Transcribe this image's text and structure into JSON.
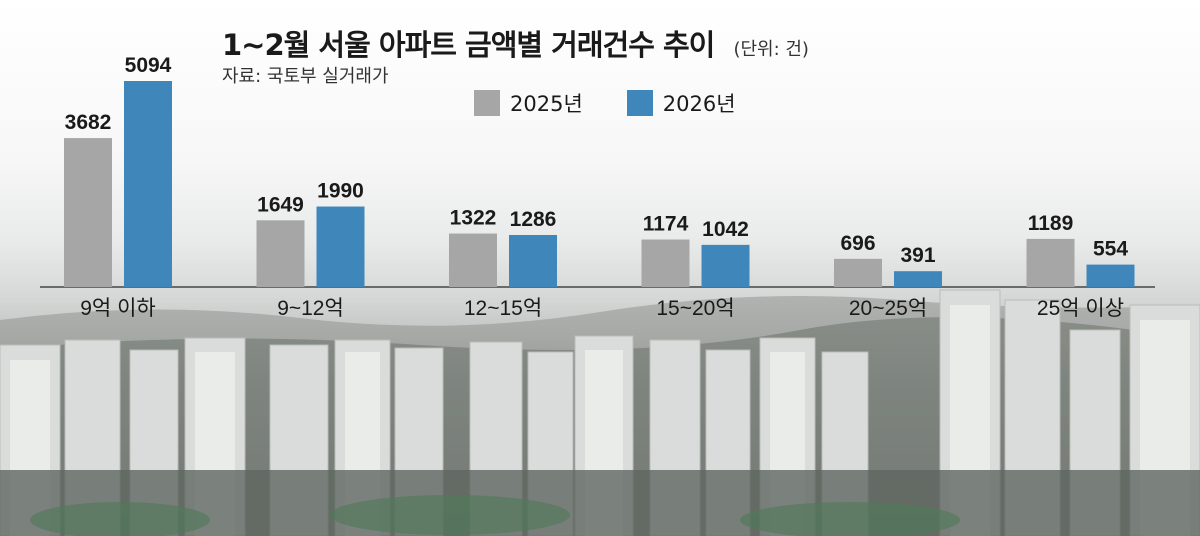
{
  "title": "1~2월 서울 아파트 금액별 거래건수 추이",
  "unit": "(단위: 건)",
  "source": "자료: 국토부 실거래가",
  "colors": {
    "series_2025": "#a6a6a6",
    "series_2026": "#3f87bb"
  },
  "chart_data": {
    "type": "bar",
    "categories": [
      "9억 이하",
      "9~12억",
      "12~15억",
      "15~20억",
      "20~25억",
      "25억 이상"
    ],
    "series": [
      {
        "name": "2025년",
        "values": [
          3682,
          1649,
          1322,
          1174,
          696,
          1189
        ]
      },
      {
        "name": "2026년",
        "values": [
          5094,
          1990,
          1286,
          1042,
          391,
          554
        ]
      }
    ],
    "title": "1~2월 서울 아파트 금액별 거래건수 추이",
    "xlabel": "",
    "ylabel": "",
    "ylim": [
      0,
      5094
    ],
    "grid": false,
    "legend": "top-center"
  }
}
